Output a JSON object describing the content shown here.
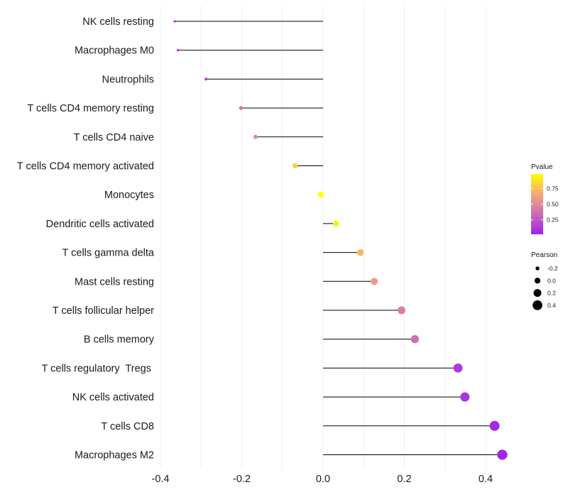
{
  "chart_data": {
    "type": "lollipop",
    "title": "",
    "xlabel": "",
    "ylabel": "",
    "xlim": [
      -0.44,
      0.48
    ],
    "x_ticks": [
      -0.4,
      -0.2,
      0.0,
      0.2,
      0.4
    ],
    "x_tick_labels": [
      "-0.4",
      "-0.2",
      "0.0",
      "0.2",
      "0.4"
    ],
    "grid": true,
    "baseline": 0,
    "points": [
      {
        "label": "NK cells resting",
        "pearson": -0.365,
        "pvalue": 0.08
      },
      {
        "label": "Macrophages M0",
        "pearson": -0.357,
        "pvalue": 0.07
      },
      {
        "label": "Neutrophils",
        "pearson": -0.288,
        "pvalue": 0.17
      },
      {
        "label": "T cells CD4 memory resting",
        "pearson": -0.202,
        "pvalue": 0.42
      },
      {
        "label": "T cells CD4 naive",
        "pearson": -0.166,
        "pvalue": 0.5
      },
      {
        "label": "T cells CD4 memory activated",
        "pearson": -0.069,
        "pvalue": 0.8
      },
      {
        "label": "Monocytes",
        "pearson": -0.005,
        "pvalue": 0.98
      },
      {
        "label": "Dendritic cells activated",
        "pearson": 0.032,
        "pvalue": 0.92
      },
      {
        "label": "T cells gamma delta",
        "pearson": 0.092,
        "pvalue": 0.72
      },
      {
        "label": "Mast cells resting",
        "pearson": 0.126,
        "pvalue": 0.6
      },
      {
        "label": "T cells follicular helper",
        "pearson": 0.193,
        "pvalue": 0.44
      },
      {
        "label": "B cells memory",
        "pearson": 0.226,
        "pvalue": 0.36
      },
      {
        "label": "T cells regulatory  Tregs ",
        "pearson": 0.332,
        "pvalue": 0.12
      },
      {
        "label": "NK cells activated",
        "pearson": 0.349,
        "pvalue": 0.1
      },
      {
        "label": "T cells CD8",
        "pearson": 0.422,
        "pvalue": 0.05
      },
      {
        "label": "Macrophages M2",
        "pearson": 0.441,
        "pvalue": 0.04
      }
    ],
    "legend_color": {
      "title": "Pvalue",
      "range": [
        0.02,
        0.98
      ],
      "ticks": [
        0.25,
        0.5,
        0.75
      ],
      "tick_labels": [
        "0.25",
        "0.50",
        "0.75"
      ],
      "colors": [
        "#A020F0",
        "#CD6AB4",
        "#F5A878",
        "#FFFF00"
      ]
    },
    "legend_size": {
      "title": "Pearson",
      "values": [
        -0.2,
        0.0,
        0.2,
        0.4
      ],
      "labels": [
        "-0.2",
        "0.0",
        "0.2",
        "0.4"
      ]
    },
    "size_range": [
      -0.37,
      0.45
    ],
    "colors": {
      "segment": "#000000",
      "grid": "#ebebeb",
      "legend_dot": "#000000"
    }
  }
}
